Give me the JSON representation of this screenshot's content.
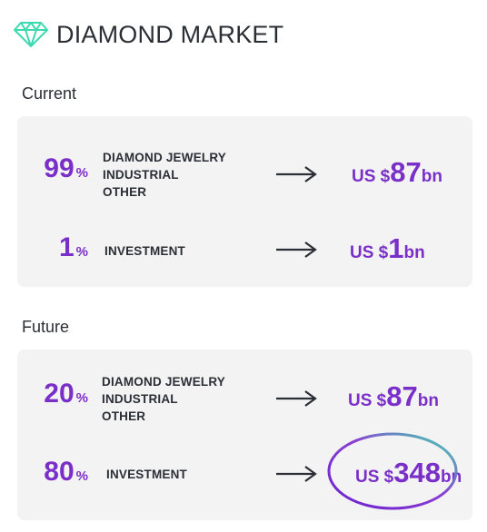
{
  "header": {
    "title": "DIAMOND MARKET",
    "icon": "diamond-icon",
    "icon_color": "#3dd9b0"
  },
  "colors": {
    "accent": "#7a2fc8",
    "text": "#2a2e35",
    "panel": "#f3f3f4",
    "highlight_ring_start": "#6a1fd0",
    "highlight_ring_end": "#3fe0b0"
  },
  "current": {
    "label": "Current",
    "rows": [
      {
        "percent": "99",
        "percent_symbol": "%",
        "categories": [
          "DIAMOND JEWELRY",
          "INDUSTRIAL",
          "OTHER"
        ],
        "value_prefix": "US $",
        "value_amount": "87",
        "value_suffix": "bn"
      },
      {
        "percent": "1",
        "percent_symbol": "%",
        "categories": [
          "INVESTMENT"
        ],
        "value_prefix": "US $",
        "value_amount": "1",
        "value_suffix": "bn"
      }
    ]
  },
  "future": {
    "label": "Future",
    "rows": [
      {
        "percent": "20",
        "percent_symbol": "%",
        "categories": [
          "DIAMOND JEWELRY",
          "INDUSTRIAL",
          "OTHER"
        ],
        "value_prefix": "US $",
        "value_amount": "87",
        "value_suffix": "bn"
      },
      {
        "percent": "80",
        "percent_symbol": "%",
        "categories": [
          "INVESTMENT"
        ],
        "value_prefix": "US $",
        "value_amount": "348",
        "value_suffix": "bn",
        "highlighted": true
      }
    ]
  }
}
